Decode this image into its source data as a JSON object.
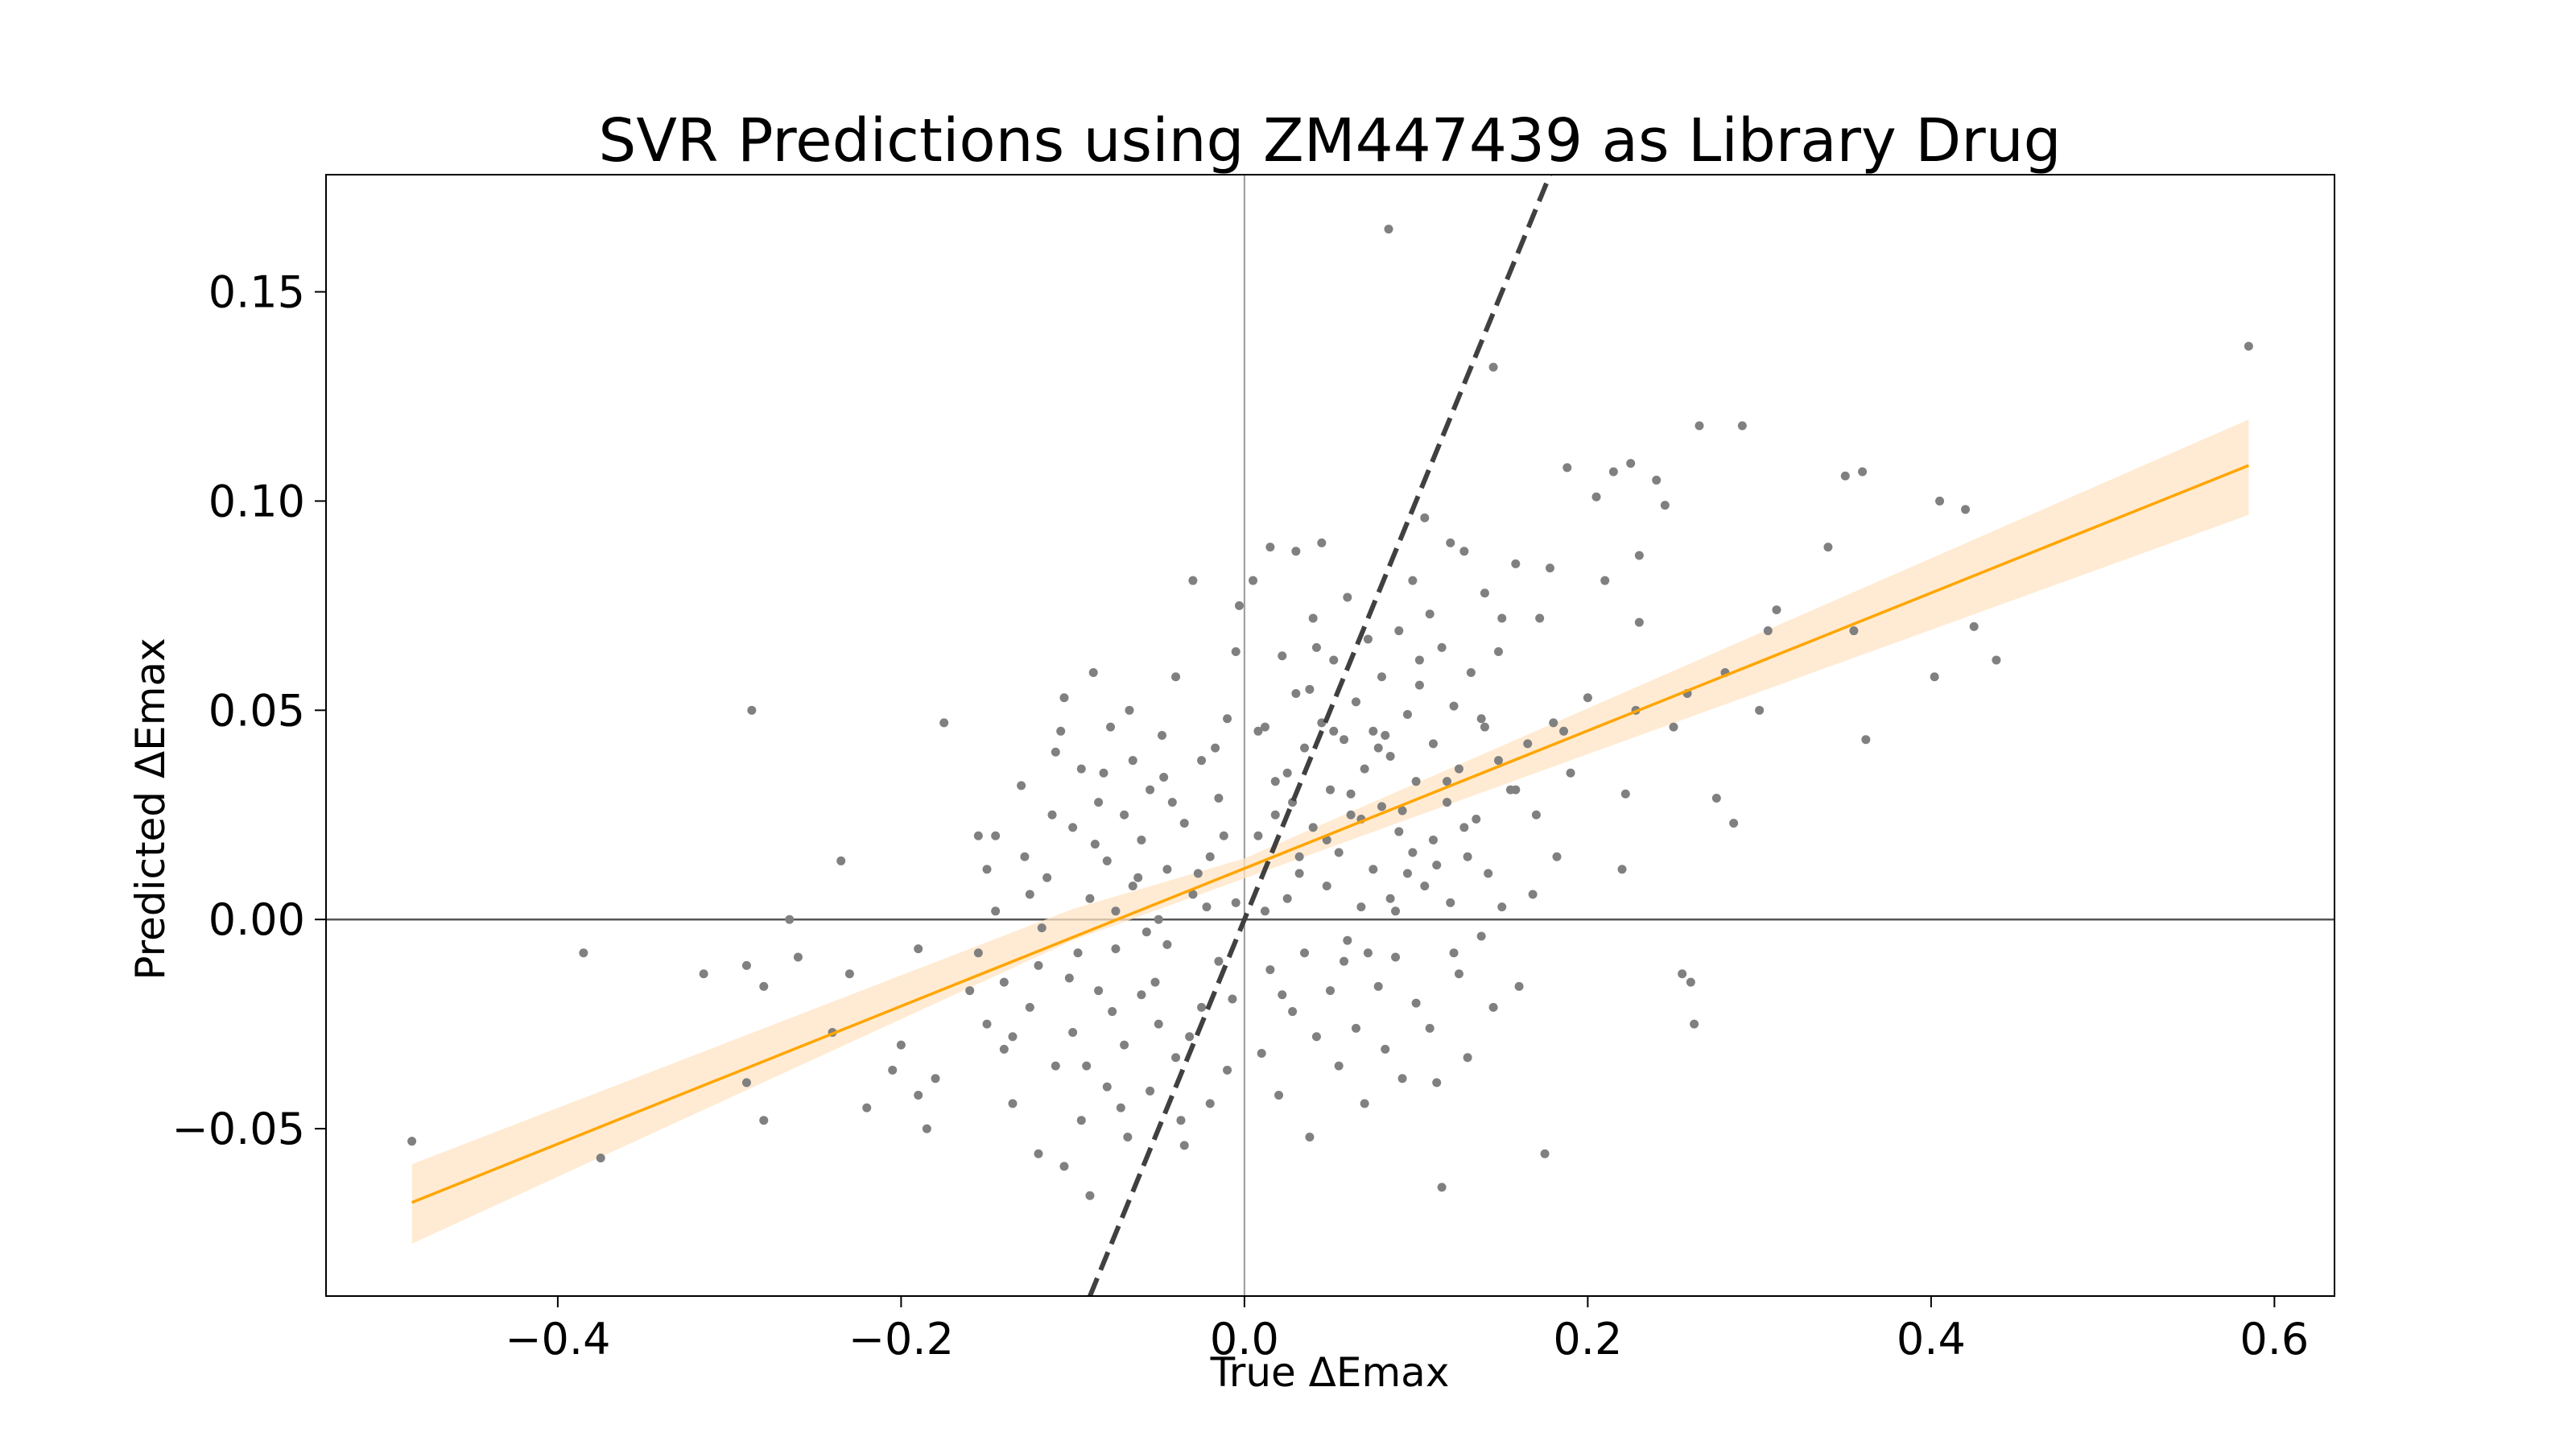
{
  "chart_data": {
    "type": "scatter",
    "title": "SVR Predictions using ZM447439 as Library Drug",
    "xlabel": "True ΔEmax",
    "ylabel": "Predicted ΔEmax",
    "xlim": [
      -0.535,
      0.635
    ],
    "ylim": [
      -0.09,
      0.178
    ],
    "x_ticks": [
      -0.4,
      -0.2,
      0.0,
      0.2,
      0.4,
      0.6
    ],
    "x_tick_labels": [
      "−0.4",
      "−0.2",
      "0.0",
      "0.2",
      "0.4",
      "0.6"
    ],
    "y_ticks": [
      -0.05,
      0.0,
      0.05,
      0.1,
      0.15
    ],
    "y_tick_labels": [
      "−0.05",
      "0.00",
      "0.05",
      "0.10",
      "0.15"
    ],
    "grid": false,
    "reference_lines": {
      "identity_dashed": {
        "slope": 1.0,
        "intercept": 0.0,
        "color": "#404040"
      },
      "zero_horizontal": {
        "y": 0.0,
        "color": "#555555"
      },
      "zero_vertical": {
        "x": 0.0,
        "color": "#999999"
      }
    },
    "regression": {
      "slope": 0.1646,
      "intercept": 0.0122,
      "x_range": [
        -0.485,
        0.585
      ],
      "ci_low": [
        -0.0775,
        -0.005,
        0.0098,
        0.0967
      ],
      "ci_high": [
        -0.0585,
        0.0025,
        0.0146,
        0.1195
      ],
      "ci_x": [
        -0.485,
        -0.1,
        0.0,
        0.585
      ],
      "line_color": "#FFA500",
      "band_color": "#FFE4C4"
    },
    "point_color": "#808080",
    "points": [
      [
        -0.485,
        -0.053
      ],
      [
        -0.385,
        -0.008
      ],
      [
        -0.375,
        -0.057
      ],
      [
        -0.315,
        -0.013
      ],
      [
        -0.29,
        -0.011
      ],
      [
        -0.287,
        0.05
      ],
      [
        -0.28,
        -0.016
      ],
      [
        -0.29,
        -0.039
      ],
      [
        -0.28,
        -0.048
      ],
      [
        -0.265,
        0.0
      ],
      [
        -0.26,
        -0.009
      ],
      [
        -0.24,
        -0.027
      ],
      [
        -0.235,
        0.014
      ],
      [
        -0.23,
        -0.013
      ],
      [
        -0.22,
        -0.045
      ],
      [
        -0.205,
        -0.036
      ],
      [
        -0.2,
        -0.03
      ],
      [
        -0.19,
        -0.007
      ],
      [
        -0.19,
        -0.042
      ],
      [
        -0.185,
        -0.05
      ],
      [
        -0.18,
        -0.038
      ],
      [
        -0.175,
        0.047
      ],
      [
        -0.16,
        -0.017
      ],
      [
        -0.155,
        0.02
      ],
      [
        -0.155,
        -0.008
      ],
      [
        -0.15,
        0.012
      ],
      [
        -0.15,
        -0.025
      ],
      [
        -0.145,
        0.002
      ],
      [
        -0.14,
        -0.015
      ],
      [
        -0.14,
        -0.031
      ],
      [
        -0.135,
        -0.044
      ],
      [
        -0.13,
        0.032
      ],
      [
        -0.125,
        -0.021
      ],
      [
        -0.125,
        0.006
      ],
      [
        -0.12,
        -0.056
      ],
      [
        -0.12,
        -0.011
      ],
      [
        -0.115,
        0.01
      ],
      [
        -0.11,
        0.04
      ],
      [
        -0.11,
        -0.035
      ],
      [
        -0.105,
        -0.059
      ],
      [
        -0.105,
        0.053
      ],
      [
        -0.1,
        0.022
      ],
      [
        -0.1,
        -0.027
      ],
      [
        -0.095,
        0.036
      ],
      [
        -0.095,
        -0.048
      ],
      [
        -0.09,
        0.005
      ],
      [
        -0.09,
        -0.066
      ],
      [
        -0.088,
        0.059
      ],
      [
        -0.085,
        0.028
      ],
      [
        -0.085,
        -0.017
      ],
      [
        -0.08,
        0.014
      ],
      [
        -0.08,
        -0.04
      ],
      [
        -0.078,
        0.046
      ],
      [
        -0.075,
        -0.007
      ],
      [
        -0.075,
        0.002
      ],
      [
        -0.07,
        0.025
      ],
      [
        -0.07,
        -0.03
      ],
      [
        -0.068,
        -0.052
      ],
      [
        -0.065,
        0.038
      ],
      [
        -0.065,
        0.008
      ],
      [
        -0.06,
        -0.018
      ],
      [
        -0.06,
        0.019
      ],
      [
        -0.055,
        -0.041
      ],
      [
        -0.055,
        0.031
      ],
      [
        -0.05,
        0.0
      ],
      [
        -0.05,
        -0.025
      ],
      [
        -0.048,
        0.044
      ],
      [
        -0.045,
        0.012
      ],
      [
        -0.045,
        -0.006
      ],
      [
        -0.04,
        0.058
      ],
      [
        -0.04,
        -0.033
      ],
      [
        -0.035,
        0.023
      ],
      [
        -0.035,
        -0.054
      ],
      [
        -0.03,
        0.081
      ],
      [
        -0.03,
        0.006
      ],
      [
        -0.025,
        0.038
      ],
      [
        -0.025,
        -0.021
      ],
      [
        -0.02,
        0.015
      ],
      [
        -0.02,
        -0.044
      ],
      [
        -0.015,
        0.029
      ],
      [
        -0.015,
        -0.01
      ],
      [
        -0.01,
        0.048
      ],
      [
        -0.01,
        -0.036
      ],
      [
        -0.005,
        0.064
      ],
      [
        -0.005,
        0.004
      ],
      [
        -0.003,
        0.075
      ],
      [
        -0.128,
        0.015
      ],
      [
        -0.118,
        -0.002
      ],
      [
        -0.112,
        0.025
      ],
      [
        -0.102,
        -0.014
      ],
      [
        -0.092,
        -0.035
      ],
      [
        -0.082,
        0.035
      ],
      [
        -0.072,
        -0.045
      ],
      [
        -0.062,
        0.01
      ],
      [
        -0.052,
        -0.015
      ],
      [
        -0.042,
        0.028
      ],
      [
        -0.032,
        -0.028
      ],
      [
        -0.022,
        0.003
      ],
      [
        -0.012,
        0.02
      ],
      [
        -0.145,
        0.02
      ],
      [
        -0.135,
        -0.028
      ],
      [
        -0.107,
        0.045
      ],
      [
        -0.097,
        -0.008
      ],
      [
        -0.087,
        0.018
      ],
      [
        -0.077,
        -0.022
      ],
      [
        -0.067,
        0.05
      ],
      [
        -0.057,
        -0.003
      ],
      [
        -0.047,
        0.034
      ],
      [
        -0.037,
        -0.048
      ],
      [
        -0.027,
        0.011
      ],
      [
        -0.017,
        0.041
      ],
      [
        -0.007,
        -0.019
      ],
      [
        0.005,
        0.081
      ],
      [
        0.008,
        0.02
      ],
      [
        0.01,
        -0.032
      ],
      [
        0.012,
        0.046
      ],
      [
        0.015,
        0.089
      ],
      [
        0.015,
        -0.012
      ],
      [
        0.018,
        0.025
      ],
      [
        0.02,
        -0.042
      ],
      [
        0.022,
        0.063
      ],
      [
        0.025,
        0.005
      ],
      [
        0.025,
        0.035
      ],
      [
        0.028,
        -0.022
      ],
      [
        0.03,
        0.054
      ],
      [
        0.03,
        0.088
      ],
      [
        0.032,
        0.015
      ],
      [
        0.035,
        -0.008
      ],
      [
        0.035,
        0.041
      ],
      [
        0.038,
        -0.052
      ],
      [
        0.04,
        0.072
      ],
      [
        0.04,
        0.022
      ],
      [
        0.042,
        -0.028
      ],
      [
        0.045,
        0.09
      ],
      [
        0.045,
        0.047
      ],
      [
        0.048,
        0.008
      ],
      [
        0.05,
        -0.017
      ],
      [
        0.05,
        0.031
      ],
      [
        0.052,
        0.062
      ],
      [
        0.055,
        -0.035
      ],
      [
        0.055,
        0.016
      ],
      [
        0.058,
        0.043
      ],
      [
        0.06,
        -0.005
      ],
      [
        0.06,
        0.077
      ],
      [
        0.062,
        0.025
      ],
      [
        0.065,
        -0.026
      ],
      [
        0.065,
        0.052
      ],
      [
        0.068,
        0.003
      ],
      [
        0.07,
        0.036
      ],
      [
        0.07,
        -0.044
      ],
      [
        0.072,
        0.067
      ],
      [
        0.075,
        0.012
      ],
      [
        0.075,
        0.045
      ],
      [
        0.078,
        -0.016
      ],
      [
        0.08,
        0.027
      ],
      [
        0.08,
        0.058
      ],
      [
        0.082,
        -0.031
      ],
      [
        0.084,
        0.165
      ],
      [
        0.085,
        0.005
      ],
      [
        0.085,
        0.039
      ],
      [
        0.088,
        -0.009
      ],
      [
        0.09,
        0.069
      ],
      [
        0.09,
        0.021
      ],
      [
        0.092,
        -0.038
      ],
      [
        0.095,
        0.049
      ],
      [
        0.095,
        0.011
      ],
      [
        0.098,
        0.081
      ],
      [
        0.1,
        -0.02
      ],
      [
        0.1,
        0.033
      ],
      [
        0.102,
        0.056
      ],
      [
        0.105,
        0.008
      ],
      [
        0.105,
        0.096
      ],
      [
        0.108,
        -0.026
      ],
      [
        0.11,
        0.042
      ],
      [
        0.11,
        0.019
      ],
      [
        0.112,
        -0.039
      ],
      [
        0.115,
        0.065
      ],
      [
        0.115,
        -0.064
      ],
      [
        0.118,
        0.028
      ],
      [
        0.12,
        0.09
      ],
      [
        0.12,
        0.004
      ],
      [
        0.122,
        0.051
      ],
      [
        0.125,
        -0.013
      ],
      [
        0.125,
        0.036
      ],
      [
        0.128,
        0.088
      ],
      [
        0.13,
        0.015
      ],
      [
        0.13,
        -0.033
      ],
      [
        0.132,
        0.059
      ],
      [
        0.135,
        0.024
      ],
      [
        0.138,
        -0.004
      ],
      [
        0.14,
        0.046
      ],
      [
        0.14,
        0.078
      ],
      [
        0.142,
        0.011
      ],
      [
        0.145,
        -0.021
      ],
      [
        0.145,
        0.132
      ],
      [
        0.148,
        0.038
      ],
      [
        0.15,
        0.072
      ],
      [
        0.15,
        0.003
      ],
      [
        0.155,
        0.031
      ],
      [
        0.158,
        0.085
      ],
      [
        0.16,
        -0.016
      ],
      [
        0.165,
        0.042
      ],
      [
        0.17,
        0.025
      ],
      [
        0.172,
        0.072
      ],
      [
        0.175,
        -0.056
      ],
      [
        0.178,
        0.084
      ],
      [
        0.18,
        0.047
      ],
      [
        0.182,
        0.015
      ],
      [
        0.188,
        0.108
      ],
      [
        0.19,
        0.035
      ],
      [
        0.2,
        0.053
      ],
      [
        0.205,
        0.101
      ],
      [
        0.21,
        0.081
      ],
      [
        0.215,
        0.107
      ],
      [
        0.22,
        0.012
      ],
      [
        0.222,
        0.03
      ],
      [
        0.225,
        0.109
      ],
      [
        0.228,
        0.05
      ],
      [
        0.23,
        0.071
      ],
      [
        0.23,
        0.087
      ],
      [
        0.24,
        0.105
      ],
      [
        0.245,
        0.099
      ],
      [
        0.25,
        0.046
      ],
      [
        0.255,
        -0.013
      ],
      [
        0.258,
        0.054
      ],
      [
        0.26,
        -0.015
      ],
      [
        0.262,
        -0.025
      ],
      [
        0.265,
        0.118
      ],
      [
        0.275,
        0.029
      ],
      [
        0.28,
        0.059
      ],
      [
        0.285,
        0.023
      ],
      [
        0.29,
        0.118
      ],
      [
        0.3,
        0.05
      ],
      [
        0.305,
        0.069
      ],
      [
        0.31,
        0.074
      ],
      [
        0.34,
        0.089
      ],
      [
        0.35,
        0.106
      ],
      [
        0.355,
        0.069
      ],
      [
        0.36,
        0.107
      ],
      [
        0.362,
        0.043
      ],
      [
        0.402,
        0.058
      ],
      [
        0.405,
        0.1
      ],
      [
        0.42,
        0.098
      ],
      [
        0.425,
        0.07
      ],
      [
        0.438,
        0.062
      ],
      [
        0.585,
        0.137
      ],
      [
        0.012,
        0.002
      ],
      [
        0.022,
        -0.018
      ],
      [
        0.032,
        0.011
      ],
      [
        0.042,
        0.065
      ],
      [
        0.052,
        0.045
      ],
      [
        0.062,
        0.03
      ],
      [
        0.072,
        -0.008
      ],
      [
        0.082,
        0.044
      ],
      [
        0.092,
        0.026
      ],
      [
        0.102,
        0.062
      ],
      [
        0.112,
        0.013
      ],
      [
        0.122,
        -0.008
      ],
      [
        0.008,
        0.045
      ],
      [
        0.018,
        0.033
      ],
      [
        0.028,
        0.028
      ],
      [
        0.038,
        0.055
      ],
      [
        0.048,
        0.019
      ],
      [
        0.058,
        -0.01
      ],
      [
        0.068,
        0.024
      ],
      [
        0.078,
        0.041
      ],
      [
        0.088,
        0.002
      ],
      [
        0.098,
        0.016
      ],
      [
        0.108,
        0.073
      ],
      [
        0.118,
        0.033
      ],
      [
        0.128,
        0.022
      ],
      [
        0.138,
        0.048
      ],
      [
        0.148,
        0.064
      ],
      [
        0.158,
        0.031
      ],
      [
        0.168,
        0.006
      ],
      [
        0.186,
        0.045
      ]
    ]
  }
}
